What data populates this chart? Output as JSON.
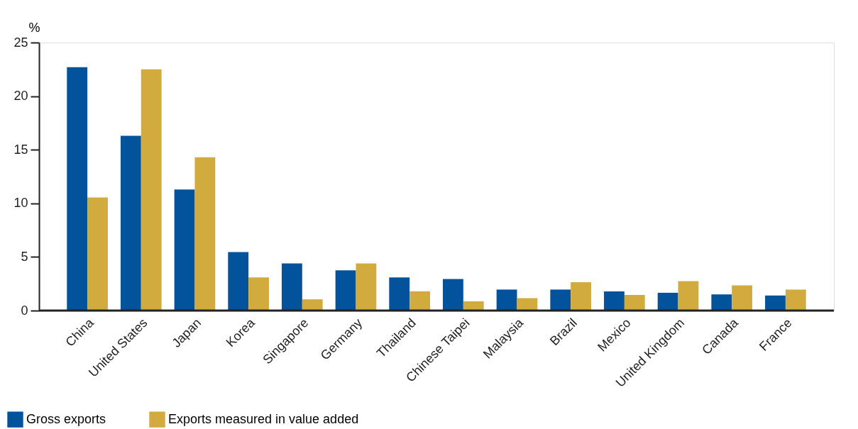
{
  "chart_data": {
    "type": "bar",
    "ylabel": "%",
    "categories": [
      "China",
      "United States",
      "Japan",
      "Korea",
      "Singapore",
      "Germany",
      "Thailand",
      "Chinese Taipei",
      "Malaysia",
      "Brazil",
      "Mexico",
      "United Kingdom",
      "Canada",
      "France"
    ],
    "series": [
      {
        "name": "Gross exports",
        "color": "#03529c",
        "values": [
          22.7,
          16.3,
          11.3,
          5.45,
          4.4,
          3.75,
          3.1,
          2.95,
          1.96,
          1.96,
          1.79,
          1.66,
          1.51,
          1.41
        ]
      },
      {
        "name": "Exports measured in value added",
        "color": "#d1ab3e",
        "values": [
          10.55,
          22.5,
          14.3,
          3.1,
          1.05,
          4.4,
          1.8,
          0.86,
          1.16,
          2.64,
          1.46,
          2.74,
          2.34,
          1.96
        ]
      }
    ],
    "ylim": [
      0,
      25
    ],
    "yticks": [
      0,
      5,
      10,
      15,
      20,
      25
    ],
    "grid": false,
    "legend": "bottom left"
  }
}
